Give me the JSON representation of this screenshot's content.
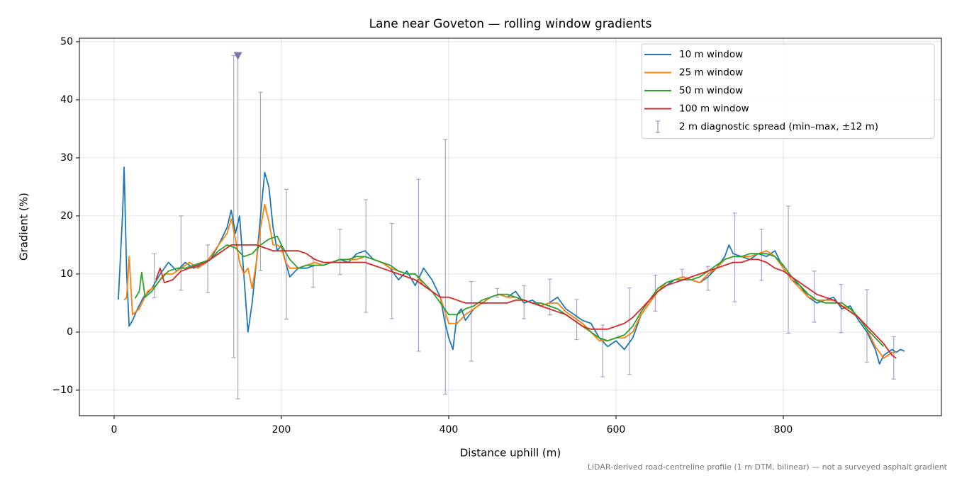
{
  "chart_data": {
    "type": "line",
    "title": "Lane near Goveton — rolling window gradients",
    "xlabel": "Distance uphill (m)",
    "ylabel": "Gradient (%)",
    "footnote": "LiDAR-derived road-centreline profile (1 m DTM, bilinear) — not a surveyed asphalt gradient",
    "xlim": [
      -41.5,
      989
    ],
    "ylim": [
      -14.4,
      50.6
    ],
    "xticks": [
      0,
      200,
      400,
      600,
      800
    ],
    "yticks": [
      {
        "value": -10,
        "label": "−10"
      },
      0,
      10,
      20,
      30,
      40,
      50
    ],
    "grid": true,
    "legend": "upper right",
    "series": [
      {
        "name": "10 m window",
        "color": "#1f77b4",
        "x": [
          5,
          10,
          12,
          15,
          18,
          22,
          28,
          35,
          45,
          55,
          65,
          75,
          85,
          95,
          105,
          115,
          125,
          135,
          140,
          145,
          150,
          155,
          160,
          165,
          170,
          175,
          180,
          185,
          190,
          195,
          200,
          205,
          210,
          220,
          230,
          240,
          250,
          260,
          270,
          280,
          290,
          300,
          310,
          320,
          330,
          340,
          350,
          360,
          370,
          380,
          390,
          395,
          400,
          405,
          410,
          415,
          420,
          430,
          440,
          450,
          460,
          470,
          480,
          490,
          500,
          510,
          520,
          530,
          540,
          550,
          560,
          570,
          580,
          590,
          600,
          610,
          620,
          630,
          640,
          650,
          660,
          670,
          680,
          690,
          700,
          710,
          720,
          730,
          735,
          740,
          750,
          760,
          770,
          780,
          790,
          800,
          810,
          820,
          830,
          840,
          850,
          860,
          870,
          880,
          890,
          900,
          910,
          915,
          920,
          930,
          935,
          940,
          945
        ],
        "values": [
          5.6,
          20,
          28.4,
          10,
          1,
          2,
          4,
          6,
          7.5,
          10,
          12,
          10.5,
          12,
          11,
          11.5,
          12.5,
          15,
          18,
          21,
          17,
          20,
          10,
          0,
          5,
          12,
          20,
          27.5,
          25,
          18,
          14,
          15,
          12,
          9.5,
          11,
          11,
          11.5,
          11.5,
          12,
          12.5,
          12,
          13.5,
          14,
          12.5,
          12,
          11,
          9,
          10.5,
          8,
          11,
          9,
          6,
          2,
          -1,
          -3,
          3,
          4,
          2,
          4,
          5,
          6,
          6.5,
          6,
          7,
          5,
          5.5,
          4.5,
          5,
          6,
          4,
          3,
          2,
          1.5,
          -1,
          -2.5,
          -1.5,
          -3,
          -1,
          3,
          5,
          7,
          8,
          9,
          9.5,
          9,
          8.5,
          9.5,
          11,
          13,
          15,
          13.5,
          13,
          12.5,
          13.5,
          13,
          14,
          11,
          9,
          8,
          6,
          5,
          5.5,
          6,
          4,
          4.5,
          2,
          0,
          -3,
          -5.5,
          -4,
          -3,
          -3.5,
          -3,
          -3.3
        ]
      },
      {
        "name": "25 m window",
        "color": "#ff7f0e",
        "x": [
          12,
          15,
          18,
          22,
          30,
          40,
          50,
          60,
          70,
          80,
          90,
          100,
          110,
          120,
          130,
          135,
          140,
          145,
          150,
          155,
          160,
          165,
          170,
          175,
          180,
          185,
          190,
          195,
          200,
          205,
          210,
          220,
          230,
          240,
          250,
          260,
          270,
          280,
          290,
          300,
          310,
          320,
          330,
          340,
          350,
          360,
          370,
          380,
          390,
          400,
          410,
          420,
          430,
          440,
          450,
          460,
          470,
          480,
          490,
          500,
          510,
          520,
          530,
          540,
          550,
          560,
          570,
          580,
          590,
          600,
          610,
          620,
          630,
          640,
          650,
          660,
          670,
          680,
          690,
          700,
          710,
          720,
          730,
          740,
          750,
          760,
          770,
          780,
          790,
          800,
          810,
          820,
          830,
          840,
          850,
          860,
          870,
          880,
          890,
          900,
          910,
          920,
          930,
          935
        ],
        "values": [
          5.5,
          6,
          13,
          3,
          4,
          7,
          8,
          10,
          10,
          11,
          12,
          11,
          12,
          14,
          16,
          17,
          19.5,
          16,
          12,
          10,
          11,
          7.5,
          12,
          18,
          22,
          19,
          15,
          15,
          14.5,
          12,
          11,
          11,
          11.5,
          12,
          11.5,
          12,
          12.5,
          12.5,
          12.5,
          13,
          12.5,
          12,
          11,
          10.5,
          10,
          10,
          8,
          7,
          6,
          1.5,
          1.5,
          3,
          4,
          5,
          6,
          6.5,
          6,
          6,
          5.5,
          5,
          4.5,
          5,
          5,
          3.5,
          2.5,
          1.5,
          0,
          -1.5,
          -1.5,
          -1,
          -1,
          0,
          3,
          5,
          7,
          8.5,
          9,
          9.5,
          9,
          8.5,
          10,
          11,
          12.5,
          13,
          13,
          13,
          13.5,
          14,
          13,
          11,
          9,
          7.5,
          6,
          5.5,
          5.5,
          5.5,
          4.5,
          4,
          2.5,
          0.5,
          -2.5,
          -4.5,
          -3.5,
          -3.5
        ]
      },
      {
        "name": "50 m window",
        "color": "#2ca02c",
        "x": [
          25,
          30,
          33,
          37,
          45,
          55,
          65,
          75,
          85,
          95,
          105,
          115,
          125,
          135,
          145,
          155,
          165,
          175,
          185,
          195,
          200,
          210,
          220,
          230,
          240,
          250,
          260,
          270,
          280,
          290,
          300,
          310,
          320,
          330,
          340,
          350,
          360,
          370,
          380,
          390,
          400,
          410,
          420,
          430,
          440,
          450,
          460,
          470,
          480,
          490,
          500,
          510,
          520,
          530,
          540,
          550,
          560,
          570,
          580,
          590,
          600,
          610,
          620,
          630,
          640,
          650,
          660,
          670,
          680,
          690,
          700,
          710,
          720,
          730,
          740,
          750,
          760,
          770,
          780,
          790,
          800,
          810,
          820,
          830,
          840,
          850,
          860,
          870,
          880,
          890,
          900,
          910,
          920
        ],
        "values": [
          5.8,
          7,
          10.3,
          6,
          7,
          9,
          10.5,
          11,
          11,
          11.5,
          12,
          12.5,
          14,
          15,
          14.5,
          13,
          13.5,
          15,
          16,
          16.5,
          15,
          12.5,
          11,
          11.5,
          11.5,
          11.5,
          12,
          12.5,
          12.5,
          13,
          13,
          12.5,
          12,
          11.5,
          10.5,
          10,
          10,
          8.5,
          7,
          5,
          3,
          3,
          4,
          4.5,
          5.5,
          6,
          6.5,
          6.5,
          6,
          5.5,
          5,
          5,
          4.5,
          4,
          3,
          2,
          1,
          0,
          -1,
          -1.5,
          -1,
          -0.5,
          1,
          3.5,
          5.5,
          7.5,
          8.5,
          9,
          9,
          9,
          9.5,
          10.5,
          11.5,
          12.5,
          13,
          13,
          13.5,
          13.5,
          13.5,
          13,
          11.5,
          9.5,
          8,
          6.5,
          5.5,
          5,
          5,
          5,
          4,
          2.5,
          0.5,
          -1,
          -2.5
        ]
      },
      {
        "name": "100 m window",
        "color": "#d62728",
        "x": [
          50,
          55,
          60,
          70,
          80,
          90,
          100,
          110,
          120,
          130,
          140,
          150,
          160,
          170,
          180,
          190,
          200,
          210,
          220,
          230,
          240,
          250,
          260,
          270,
          280,
          290,
          300,
          310,
          320,
          330,
          340,
          350,
          360,
          370,
          380,
          390,
          400,
          410,
          420,
          430,
          440,
          450,
          460,
          470,
          480,
          490,
          500,
          510,
          520,
          530,
          540,
          550,
          560,
          570,
          580,
          590,
          600,
          610,
          620,
          630,
          640,
          650,
          660,
          670,
          680,
          690,
          700,
          710,
          720,
          730,
          740,
          750,
          760,
          770,
          780,
          790,
          800,
          810,
          820,
          830,
          840,
          850,
          860,
          870,
          880,
          890,
          900,
          910,
          920,
          930,
          935
        ],
        "values": [
          9,
          11,
          8.5,
          9,
          10.5,
          11,
          11.5,
          12,
          13,
          14,
          15,
          15,
          15,
          15,
          14.5,
          14,
          14,
          14,
          14,
          13.5,
          12.5,
          12,
          12,
          12,
          12,
          12,
          12,
          11.5,
          11,
          10.5,
          10,
          9.5,
          9,
          8,
          7,
          6,
          6,
          5.5,
          5,
          5,
          5,
          5,
          5,
          5,
          5.5,
          5.5,
          5,
          4.5,
          4,
          3.5,
          3,
          2,
          1,
          0.5,
          0.5,
          0.5,
          1,
          1.5,
          2.5,
          4,
          5.5,
          7,
          8,
          8.5,
          9,
          9.5,
          10,
          10.5,
          11,
          11.5,
          12,
          12,
          12.5,
          12.5,
          12,
          11,
          10.5,
          9.5,
          8.5,
          7.5,
          6.5,
          6,
          5.5,
          4.5,
          3.5,
          2.5,
          1,
          -0.5,
          -2,
          -4,
          -4.5
        ]
      }
    ],
    "errorbars": {
      "name": "2 m diagnostic spread (min–max, ±12 m)",
      "color": "#9d93c0",
      "x": [
        48,
        80,
        112,
        143,
        148,
        175,
        206,
        238,
        270,
        301,
        332,
        364,
        396,
        427,
        458,
        490,
        521,
        553,
        584,
        616,
        647,
        679,
        710,
        742,
        774,
        806,
        837,
        869,
        900,
        932
      ],
      "low": [
        5.9,
        7.2,
        6.8,
        -4.4,
        -11.5,
        10.6,
        2.2,
        7.7,
        9.9,
        3.4,
        2.3,
        -3.3,
        -10.7,
        -5,
        6,
        2.3,
        3,
        -1.3,
        -7.7,
        -7.3,
        3.6,
        8.9,
        7.2,
        5.2,
        8.9,
        -0.2,
        1.7,
        -0.1,
        -5.2,
        -8.1
      ],
      "high": [
        13.5,
        20,
        15,
        47.6,
        47.6,
        41.3,
        24.6,
        12.6,
        17.7,
        22.8,
        18.7,
        26.3,
        33.2,
        8.7,
        7.5,
        8,
        9.1,
        5.6,
        1.2,
        7.6,
        9.8,
        10.8,
        11.3,
        20.5,
        17.7,
        21.7,
        10.5,
        8.2,
        7.3,
        -0.8
      ]
    },
    "clip_marker": {
      "x": 148,
      "y": 47.6,
      "color": "#8073ac"
    }
  }
}
